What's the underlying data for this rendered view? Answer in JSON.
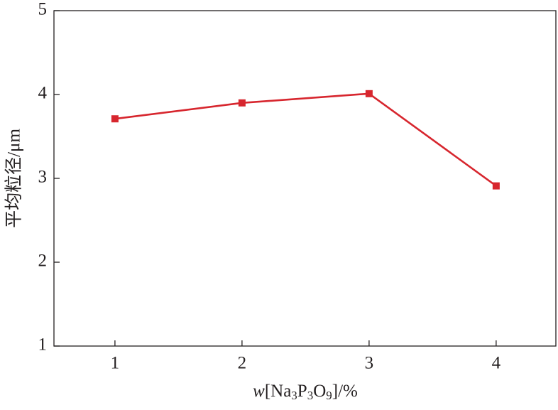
{
  "chart_data": {
    "type": "line",
    "x_label": [
      {
        "text": "w",
        "italic": true
      },
      {
        "text": "[Na"
      },
      {
        "text": "3",
        "sub": true
      },
      {
        "text": "P"
      },
      {
        "text": "3",
        "sub": true
      },
      {
        "text": "O"
      },
      {
        "text": "9",
        "sub": true
      },
      {
        "text": "]/%"
      }
    ],
    "y_label": "平均粒径/μm",
    "x": [
      1,
      2,
      3,
      4
    ],
    "series": [
      {
        "color": "#d7262e",
        "values": [
          3.71,
          3.9,
          4.01,
          2.91
        ]
      }
    ],
    "xlim": [
      0.52,
      4.47
    ],
    "xticks": [
      1,
      2,
      3,
      4
    ],
    "ylim": [
      1,
      5
    ],
    "yticks": [
      1,
      2,
      3,
      4,
      5
    ],
    "grid": false
  }
}
